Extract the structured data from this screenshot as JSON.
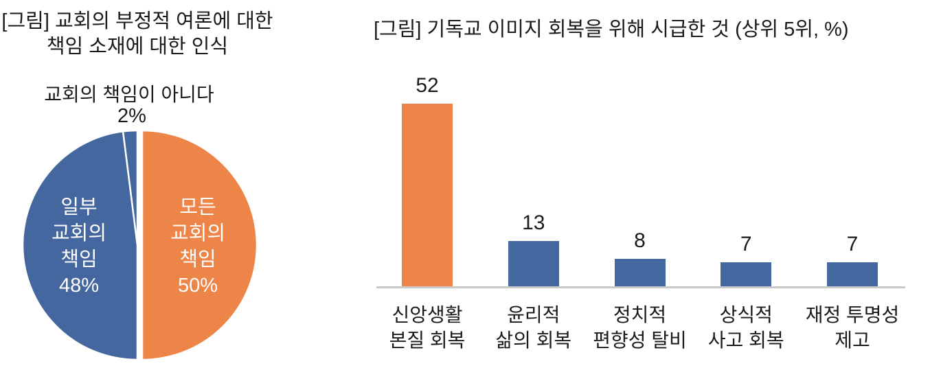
{
  "page": {
    "background": "#ffffff"
  },
  "colors": {
    "orange": "#ED8448",
    "blue": "#45679F",
    "text": "#1A1A1A",
    "axis_line": "#C9C9C9",
    "pie_border": "#FFFFFF"
  },
  "chart_data": [
    {
      "type": "pie",
      "title": "[그림] 교회의 부정적 여론에 대한\n책임 소재에 대한 인식",
      "callout_label": "교회의 책임이 아니다",
      "callout_value": "2%",
      "direction": "clockwise",
      "start_angle_deg": 0,
      "legend": "none",
      "slices": [
        {
          "label": "모든 교회의 책임",
          "value": 50,
          "color": "#ED8448",
          "inside_label": "모든\n교회의\n책임\n50%",
          "text_color": "#FFFFFF"
        },
        {
          "label": "일부 교회의 책임",
          "value": 48,
          "color": "#45679F",
          "inside_label": "일부\n교회의\n책임\n48%",
          "text_color": "#FFFFFF"
        },
        {
          "label": "교회의 책임이 아니다",
          "value": 2,
          "color": "#45679F"
        }
      ]
    },
    {
      "type": "bar",
      "title": "[그림] 기독교 이미지 회복을 위해 시급한 것 (상위 5위, %)",
      "categories": [
        "신앙생활\n본질 회복",
        "윤리적\n삶의 회복",
        "정치적\n편향성 탈비",
        "상식적\n사고 회복",
        "재정 투명성\n제고"
      ],
      "values": [
        52,
        13,
        8,
        7,
        7
      ],
      "bar_colors": [
        "#ED8448",
        "#45679F",
        "#45679F",
        "#45679F",
        "#45679F"
      ],
      "show_value_labels": true,
      "ylim": [
        0,
        55
      ],
      "grid": false,
      "legend": "none",
      "xlabel": "",
      "ylabel": ""
    }
  ]
}
